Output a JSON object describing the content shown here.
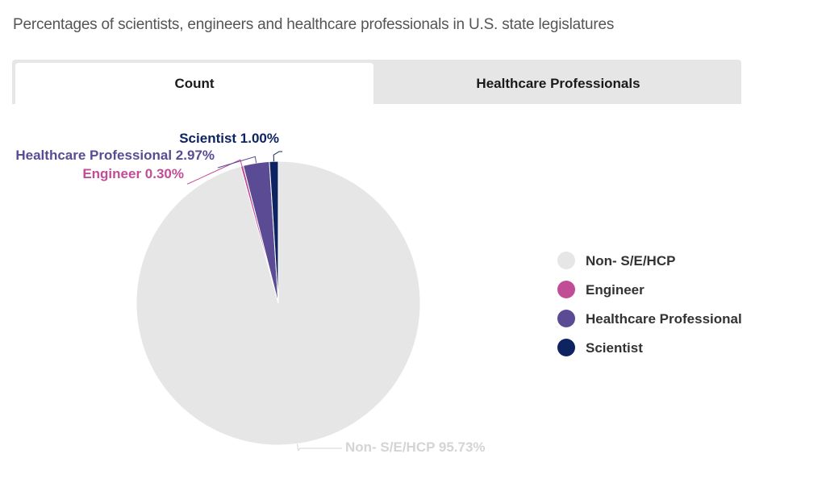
{
  "page": {
    "title": "Percentages of scientists, engineers and healthcare professionals in U.S. state legislatures"
  },
  "tabs": [
    {
      "label": "Count",
      "active": true
    },
    {
      "label": "Healthcare Professionals",
      "active": false
    }
  ],
  "chart_data": {
    "type": "pie",
    "title": "",
    "slices": [
      {
        "name": "Non- S/E/HCP",
        "value": 95.73,
        "label": "Non- S/E/HCP 95.73%",
        "color": "#e6e6e6",
        "label_color": "#d4d4d4"
      },
      {
        "name": "Engineer",
        "value": 0.3,
        "label": "Engineer 0.30%",
        "color": "#c24d97",
        "label_color": "#c24d97"
      },
      {
        "name": "Healthcare Professional",
        "value": 2.97,
        "label": "Healthcare Professional 2.97%",
        "color": "#5b4b94",
        "label_color": "#5b4b94"
      },
      {
        "name": "Scientist",
        "value": 1.0,
        "label": "Scientist 1.00%",
        "color": "#0d2461",
        "label_color": "#0d2461"
      }
    ],
    "legend": {
      "position": "right",
      "items": [
        "Non- S/E/HCP",
        "Engineer",
        "Healthcare Professional",
        "Scientist"
      ]
    }
  }
}
